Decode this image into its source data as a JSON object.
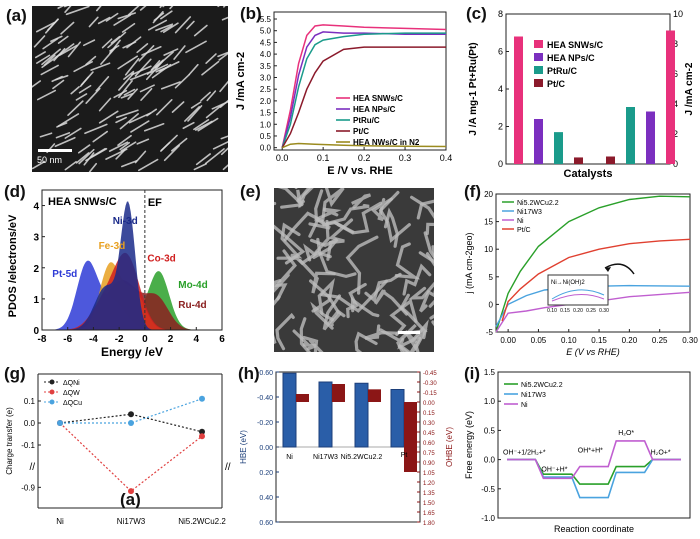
{
  "panel_labels": {
    "a": "(a)",
    "b": "(b)",
    "c": "(c)",
    "d": "(d)",
    "e": "(e)",
    "f": "(f)",
    "g": "(g)",
    "h": "(h)",
    "i": "(i)",
    "g_overlay": "(a)"
  },
  "images": {
    "a": {
      "scale_text": "50 nm"
    },
    "e": {
      "scale_text": ""
    }
  },
  "colors": {
    "magenta": "#e8317b",
    "purple": "#7b2fbf",
    "teal": "#1a9b8b",
    "maroon": "#8b1a2b",
    "olive": "#9b8b1f",
    "green": "#2aa02a",
    "lightblue": "#4aa3df",
    "violet": "#c05fd0",
    "red": "#e04030",
    "navy": "#1c3f7a",
    "darkred": "#8b1616"
  },
  "chart_data": [
    {
      "id": "b",
      "type": "line",
      "xlabel": "E /V vs. RHE",
      "ylabel": "J /mA cm-2",
      "xlim": [
        -0.02,
        0.4
      ],
      "ylim": [
        -0.1,
        5.8
      ],
      "xticks": [
        "0.0",
        "0.1",
        "0.2",
        "0.3",
        "0.4"
      ],
      "yticks": [
        "0.0",
        "0.5",
        "1.0",
        "1.5",
        "2.0",
        "2.5",
        "3.0",
        "3.5",
        "4.0",
        "4.5",
        "5.0",
        "5.5"
      ],
      "series": [
        {
          "name": "HEA SNWs/C",
          "color": "#e8317b",
          "x": [
            0,
            0.02,
            0.04,
            0.06,
            0.08,
            0.1,
            0.15,
            0.2,
            0.3,
            0.4
          ],
          "y": [
            0,
            1.6,
            3.6,
            4.8,
            5.2,
            5.25,
            5.2,
            5.15,
            5.1,
            5.05
          ]
        },
        {
          "name": "HEA NPs/C",
          "color": "#7b2fbf",
          "x": [
            0,
            0.02,
            0.04,
            0.06,
            0.08,
            0.1,
            0.15,
            0.2,
            0.3,
            0.4
          ],
          "y": [
            0,
            1.3,
            3.1,
            4.3,
            4.8,
            4.95,
            4.9,
            4.9,
            4.85,
            4.85
          ]
        },
        {
          "name": "PtRu/C",
          "color": "#1a9b8b",
          "x": [
            0,
            0.02,
            0.04,
            0.06,
            0.08,
            0.1,
            0.15,
            0.2,
            0.3,
            0.4
          ],
          "y": [
            0,
            1.0,
            2.6,
            3.8,
            4.4,
            4.6,
            4.75,
            4.85,
            4.9,
            4.9
          ]
        },
        {
          "name": "Pt/C",
          "color": "#8b1a2b",
          "x": [
            0,
            0.02,
            0.04,
            0.06,
            0.08,
            0.1,
            0.15,
            0.2,
            0.3,
            0.4
          ],
          "y": [
            0,
            0.6,
            1.5,
            2.5,
            3.2,
            3.7,
            4.2,
            4.3,
            4.3,
            4.3
          ]
        },
        {
          "name": "HEA NWs/C in N2",
          "color": "#9b8b1f",
          "x": [
            0,
            0.02,
            0.04,
            0.08,
            0.15,
            0.2,
            0.3,
            0.4
          ],
          "y": [
            0,
            0.15,
            0.18,
            0.15,
            0.1,
            0.08,
            0.06,
            0.05
          ]
        }
      ]
    },
    {
      "id": "c",
      "type": "bar",
      "xlabel": "Catalysts",
      "ylabel_left": "J /A mg-1 Pt+Ru(Pt)",
      "ylabel_right": "J /mA cm-2",
      "ylim_left": [
        0,
        8
      ],
      "ylim_right": [
        0,
        10
      ],
      "yticks_left": [
        "0",
        "2",
        "4",
        "6",
        "8"
      ],
      "yticks_right": [
        "0",
        "2",
        "4",
        "6",
        "8",
        "10"
      ],
      "legend": [
        {
          "name": "HEA SNWs/C",
          "color": "#e8317b"
        },
        {
          "name": "HEA NPs/C",
          "color": "#7b2fbf"
        },
        {
          "name": "PtRu/C",
          "color": "#1a9b8b"
        },
        {
          "name": "Pt/C",
          "color": "#8b1a2b"
        }
      ],
      "left_values": [
        6.8,
        2.4,
        1.7,
        0.35
      ],
      "right_values": [
        0.5,
        3.8,
        3.5,
        8.9
      ],
      "right_colors": [
        "#8b1a2b",
        "#1a9b8b",
        "#7b2fbf",
        "#e8317b"
      ]
    },
    {
      "id": "d",
      "type": "area",
      "xlabel": "Energy /eV",
      "ylabel": "PDOS /electrons/eV",
      "title": "HEA SNWs/C",
      "fermi_label": "EF",
      "xlim": [
        -8,
        6
      ],
      "ylim": [
        0,
        4.5
      ],
      "xticks": [
        "-8",
        "-6",
        "-4",
        "-2",
        "0",
        "2",
        "4",
        "6"
      ],
      "yticks": [
        "0",
        "1",
        "2",
        "3",
        "4"
      ],
      "series": [
        {
          "name": "Pt-5d",
          "color": "#2e3bd6"
        },
        {
          "name": "Ni-3d",
          "color": "#1a2a8a"
        },
        {
          "name": "Fe-3d",
          "color": "#e8a020"
        },
        {
          "name": "Co-3d",
          "color": "#d02020"
        },
        {
          "name": "Mo-4d",
          "color": "#2aa02a"
        },
        {
          "name": "Ru-4d",
          "color": "#8b2020"
        }
      ]
    },
    {
      "id": "f",
      "type": "line",
      "xlabel": "E (V vs RHE)",
      "ylabel": "j (mA cm-2geo)",
      "xlim": [
        -0.02,
        0.3
      ],
      "ylim": [
        -5,
        20
      ],
      "xticks": [
        "0.00",
        "0.05",
        "0.10",
        "0.15",
        "0.20",
        "0.25",
        "0.30"
      ],
      "yticks": [
        "-5",
        "0",
        "5",
        "10",
        "15",
        "20"
      ],
      "inset_label": "Ni→Ni(OH)2",
      "inset_xticks": [
        "0.10",
        "0.15",
        "0.20",
        "0.25",
        "0.30"
      ],
      "series": [
        {
          "name": "Ni5.2WCu2.2",
          "color": "#2aa02a",
          "x": [
            -0.02,
            0,
            0.02,
            0.05,
            0.1,
            0.15,
            0.2,
            0.25,
            0.3
          ],
          "y": [
            -5,
            2,
            6,
            10.5,
            15,
            17.5,
            19,
            19.6,
            19.5
          ]
        },
        {
          "name": "Ni17W3",
          "color": "#4aa3df",
          "x": [
            -0.02,
            0,
            0.03,
            0.06,
            0.1,
            0.15,
            0.2,
            0.3
          ],
          "y": [
            -4,
            0,
            1.6,
            2.6,
            3.0,
            3.3,
            3.4,
            3.3
          ]
        },
        {
          "name": "Ni",
          "color": "#c05fd0",
          "x": [
            -0.02,
            0,
            0.03,
            0.06,
            0.1,
            0.15,
            0.2,
            0.3
          ],
          "y": [
            -5,
            -1.6,
            -1.2,
            -0.6,
            0,
            0.6,
            1.4,
            2.2
          ]
        },
        {
          "name": "Pt/C",
          "color": "#e04030",
          "x": [
            -0.01,
            0,
            0.02,
            0.05,
            0.1,
            0.15,
            0.2,
            0.25,
            0.3
          ],
          "y": [
            -3,
            0.5,
            2.8,
            5.5,
            8.5,
            10,
            11,
            11.5,
            11.8
          ]
        }
      ]
    },
    {
      "id": "g",
      "type": "line",
      "ylabel": "Charge transfer (e)",
      "categories": [
        "Ni",
        "Ni17W3",
        "Ni5.2WCu2.2"
      ],
      "yticks": [
        "0.1",
        "0.0",
        "-0.1",
        "-0.9"
      ],
      "series": [
        {
          "name": "ΔQNi",
          "color": "#222222",
          "values": [
            0.0,
            0.04,
            -0.04
          ]
        },
        {
          "name": "ΔQW",
          "color": "#e04040",
          "values": [
            0.0,
            -0.92,
            -0.06
          ]
        },
        {
          "name": "ΔQCu",
          "color": "#4aa3df",
          "values": [
            0.0,
            0.0,
            0.11
          ]
        }
      ]
    },
    {
      "id": "h",
      "type": "bar",
      "ylabel_left": "HBE (eV)",
      "ylabel_right": "OHBE (eV)",
      "categories": [
        "Ni",
        "Ni17W3",
        "Ni5.2WCu2.2",
        "Pt"
      ],
      "yticks_left": [
        "-0.60",
        "-0.40",
        "-0.20",
        "0.00",
        "0.20",
        "0.40",
        "0.60"
      ],
      "yticks_right": [
        "-0.45",
        "-0.30",
        "-0.15",
        "0.00",
        "0.15",
        "0.30",
        "0.45",
        "0.60",
        "0.75",
        "0.90",
        "1.05",
        "1.20",
        "1.35",
        "1.50",
        "1.65",
        "1.80"
      ],
      "hbe": [
        -0.59,
        -0.52,
        -0.51,
        -0.46
      ],
      "ohbe": [
        -0.12,
        -0.27,
        -0.19,
        1.05
      ]
    },
    {
      "id": "i",
      "type": "line",
      "xlabel": "Reaction coordinate",
      "ylabel": "Free energy (eV)",
      "ylim": [
        -1,
        1.5
      ],
      "yticks": [
        "1.5",
        "1.0",
        "0.5",
        "0.0",
        "-0.5",
        "-1.0"
      ],
      "states": [
        "OH⁻+1/2H₂+*",
        "OH⁻+H*",
        "OH*+H*",
        "H₂O*",
        "H₂O+*"
      ],
      "series": [
        {
          "name": "Ni5.2WCu2.2",
          "color": "#2aa02a",
          "values": [
            0,
            -0.25,
            -0.42,
            -0.12,
            0
          ]
        },
        {
          "name": "Ni17W3",
          "color": "#4aa3df",
          "values": [
            0,
            -0.3,
            -0.65,
            -0.22,
            0
          ]
        },
        {
          "name": "Ni",
          "color": "#c05fd0",
          "values": [
            0,
            -0.32,
            -0.12,
            0.32,
            0
          ]
        }
      ]
    }
  ]
}
